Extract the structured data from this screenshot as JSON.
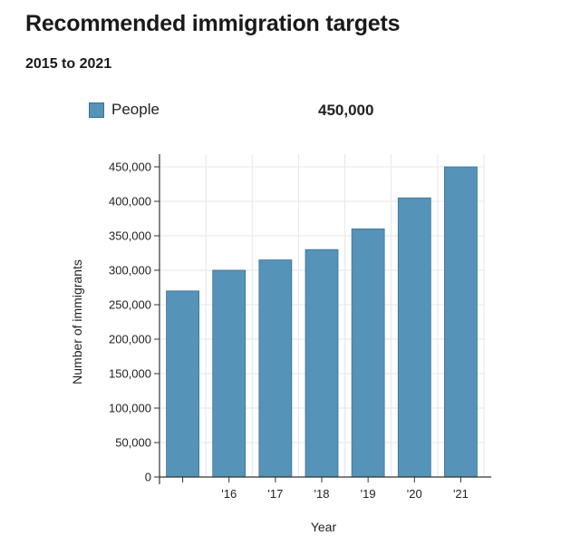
{
  "chart_data": {
    "type": "bar",
    "title": "Recommended immigration targets",
    "subtitle": "2015 to 2021",
    "categories": [
      "",
      "'16",
      "'17",
      "'18",
      "'19",
      "'20",
      "'21"
    ],
    "series": [
      {
        "name": "People",
        "values": [
          270000,
          300000,
          315000,
          330000,
          360000,
          405000,
          450000
        ]
      }
    ],
    "legend_value": "450,000",
    "xlabel": "Year",
    "ylabel": "Number of immigrants",
    "ylim": [
      0,
      450000
    ],
    "yticks": [
      "0",
      "50,000",
      "100,000",
      "150,000",
      "200,000",
      "250,000",
      "300,000",
      "350,000",
      "400,000",
      "450,000"
    ],
    "ytick_values": [
      0,
      50000,
      100000,
      150000,
      200000,
      250000,
      300000,
      350000,
      400000,
      450000
    ],
    "grid": true,
    "legend_position": "top",
    "colors": {
      "bar": "#5593b8",
      "bar_edge": "#3b7396",
      "grid": "#e6e6e6"
    }
  }
}
